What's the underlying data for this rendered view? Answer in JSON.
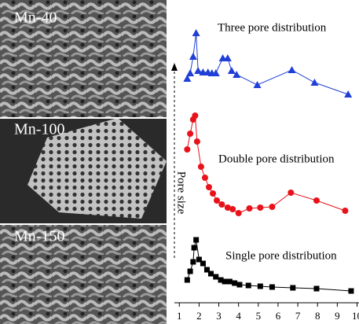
{
  "images": [
    {
      "label": "Mn-40"
    },
    {
      "label": "Mn-100"
    },
    {
      "label": "Mn-150"
    }
  ],
  "chart_data": {
    "type": "line",
    "annotations": [
      "Three pore distribution",
      "Double pore distribution",
      "Single pore distribution",
      "Pore size"
    ],
    "xlim": [
      0.75,
      10.1
    ],
    "xticks": [
      1,
      2,
      3,
      4,
      5,
      6,
      7,
      8,
      9,
      10
    ],
    "ylim": [
      0,
      383
    ],
    "series": [
      {
        "color": "#1f3fd6",
        "marker": "triangle",
        "x": [
          1.4,
          1.55,
          1.7,
          1.85,
          1.95,
          2.2,
          2.45,
          2.65,
          2.85,
          3.2,
          3.45,
          3.65,
          3.9,
          4.95,
          6.7,
          7.85,
          9.55
        ],
        "values": [
          283,
          290,
          311,
          341,
          293,
          291,
          291,
          290,
          290,
          309,
          309,
          293,
          288,
          275,
          294,
          278,
          263
        ]
      },
      {
        "color": "#e8121a",
        "marker": "circle",
        "x": [
          1.4,
          1.55,
          1.7,
          1.8,
          1.9,
          2.1,
          2.3,
          2.5,
          2.7,
          2.9,
          3.15,
          3.45,
          3.7,
          4.0,
          4.55,
          5.1,
          5.7,
          6.65,
          7.95,
          9.4
        ],
        "values": [
          193,
          213,
          231,
          236,
          203,
          171,
          157,
          145,
          137,
          128,
          123,
          119,
          117,
          112,
          118,
          119,
          120,
          138,
          128,
          115
        ]
      },
      {
        "color": "#000000",
        "marker": "square",
        "x": [
          1.4,
          1.55,
          1.7,
          1.75,
          1.85,
          2.0,
          2.2,
          2.4,
          2.6,
          2.85,
          3.1,
          3.3,
          3.55,
          3.8,
          4.05,
          4.5,
          5.1,
          5.7,
          6.75,
          7.95,
          9.7
        ],
        "values": [
          27,
          38,
          50,
          68,
          78,
          53,
          48,
          40,
          35,
          31,
          27,
          25,
          25,
          23,
          21,
          20,
          19,
          18,
          17,
          16,
          13
        ]
      }
    ]
  }
}
